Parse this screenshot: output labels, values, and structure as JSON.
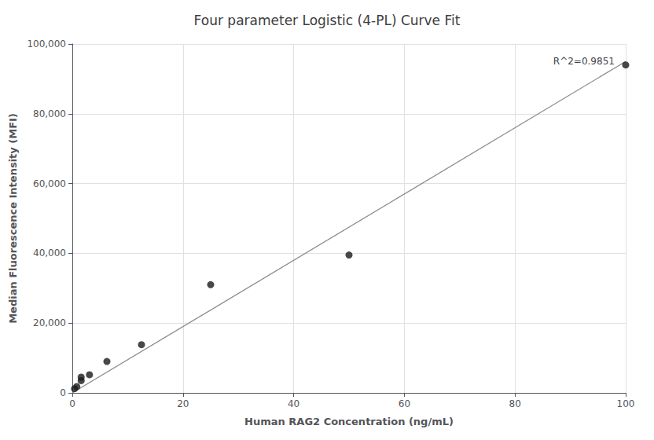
{
  "chart_data": {
    "type": "scatter",
    "title": "Four parameter Logistic (4-PL) Curve Fit",
    "xlabel": "Human RAG2 Concentration (ng/mL)",
    "ylabel": "Median Fluorescence Intensity (MFI)",
    "series": [
      {
        "type": "line",
        "color": "#888888",
        "x": [
          0,
          100
        ],
        "values": [
          0,
          95000
        ]
      },
      {
        "type": "scatter",
        "color": "#1a1a1a",
        "x": [
          0.4,
          0.8,
          1.6,
          1.6,
          3.1,
          6.25,
          12.5,
          25,
          50,
          100
        ],
        "values": [
          1200,
          1800,
          3500,
          4500,
          5200,
          9000,
          13800,
          31000,
          39500,
          94000
        ]
      }
    ],
    "annotations": [
      {
        "text": "R^2=0.9851",
        "x": 98,
        "y": 96500
      }
    ],
    "xlim": [
      0,
      100
    ],
    "ylim": [
      0,
      100000
    ],
    "xticks": [
      0,
      20,
      40,
      60,
      80,
      100
    ],
    "yticks": [
      0,
      {
        "value": 20000,
        "label": "20,000"
      },
      {
        "value": 40000,
        "label": "40,000"
      },
      {
        "value": 60000,
        "label": "60,000"
      },
      {
        "value": 80000,
        "label": "80,000"
      },
      {
        "value": 100000,
        "label": "100,000"
      }
    ],
    "grid": true
  }
}
